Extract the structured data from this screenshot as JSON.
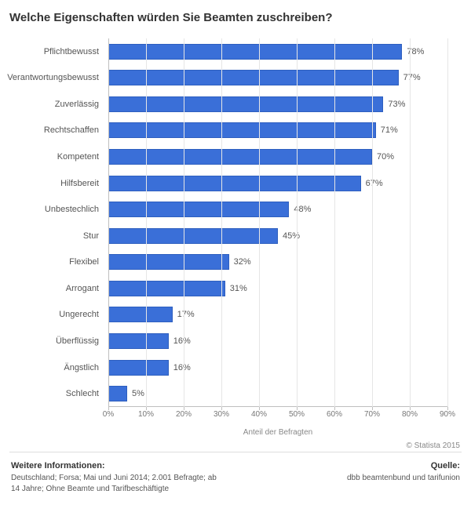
{
  "title": "Welche Eigenschaften würden Sie Beamten zuschreiben?",
  "chart": {
    "type": "bar-horizontal",
    "xaxis_title": "Anteil der Befragten",
    "xlim": [
      0,
      90
    ],
    "xtick_step": 10,
    "xtick_suffix": "%",
    "value_suffix": "%",
    "bar_color": "#3a6fd8",
    "bar_border_color": "#2e5fbf",
    "grid_color": "#e6e6e6",
    "axis_color": "#bfbfbf",
    "background_color": "#ffffff",
    "label_fontsize": 11,
    "value_fontsize": 11,
    "tick_fontsize": 10,
    "categories": [
      "Pflichtbewusst",
      "Verantwortungsbewusst",
      "Zuverlässig",
      "Rechtschaffen",
      "Kompetent",
      "Hilfsbereit",
      "Unbestechlich",
      "Stur",
      "Flexibel",
      "Arrogant",
      "Ungerecht",
      "Überflüssig",
      "Ängstlich",
      "Schlecht"
    ],
    "values": [
      78,
      77,
      73,
      71,
      70,
      67,
      48,
      45,
      32,
      31,
      17,
      16,
      16,
      5
    ]
  },
  "copyright": "© Statista 2015",
  "footer": {
    "left_heading": "Weitere Informationen:",
    "left_line1": "Deutschland; Forsa; Mai und Juni 2014; 2.001 Befragte; ab",
    "left_line2": "14 Jahre; Ohne Beamte und Tarifbeschäftigte",
    "right_heading": "Quelle:",
    "right_line": "dbb beamtenbund und tarifunion"
  }
}
